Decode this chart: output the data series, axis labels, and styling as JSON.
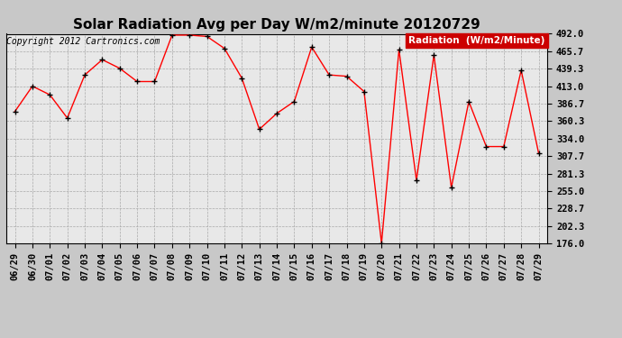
{
  "title": "Solar Radiation Avg per Day W/m2/minute 20120729",
  "copyright": "Copyright 2012 Cartronics.com",
  "legend_label": "Radiation  (W/m2/Minute)",
  "x_labels": [
    "06/29",
    "06/30",
    "07/01",
    "07/02",
    "07/03",
    "07/04",
    "07/05",
    "07/06",
    "07/07",
    "07/08",
    "07/09",
    "07/10",
    "07/11",
    "07/12",
    "07/13",
    "07/14",
    "07/15",
    "07/16",
    "07/17",
    "07/18",
    "07/19",
    "07/20",
    "07/21",
    "07/22",
    "07/23",
    "07/24",
    "07/25",
    "07/26",
    "07/27",
    "07/28",
    "07/29"
  ],
  "y_values": [
    375,
    413,
    400,
    365,
    430,
    453,
    440,
    420,
    420,
    490,
    490,
    488,
    470,
    425,
    348,
    372,
    390,
    472,
    430,
    428,
    405,
    176,
    468,
    271,
    460,
    260,
    390,
    322,
    322,
    437,
    312
  ],
  "y_ticks": [
    176.0,
    202.3,
    228.7,
    255.0,
    281.3,
    307.7,
    334.0,
    360.3,
    386.7,
    413.0,
    439.3,
    465.7,
    492.0
  ],
  "y_min": 176.0,
  "y_max": 492.0,
  "line_color": "red",
  "marker_color": "black",
  "bg_color": "#c8c8c8",
  "plot_bg_color": "#e8e8e8",
  "grid_color": "#aaaaaa",
  "legend_bg": "#cc0000",
  "legend_text_color": "white",
  "title_fontsize": 11,
  "tick_fontsize": 7.5,
  "copyright_fontsize": 7
}
